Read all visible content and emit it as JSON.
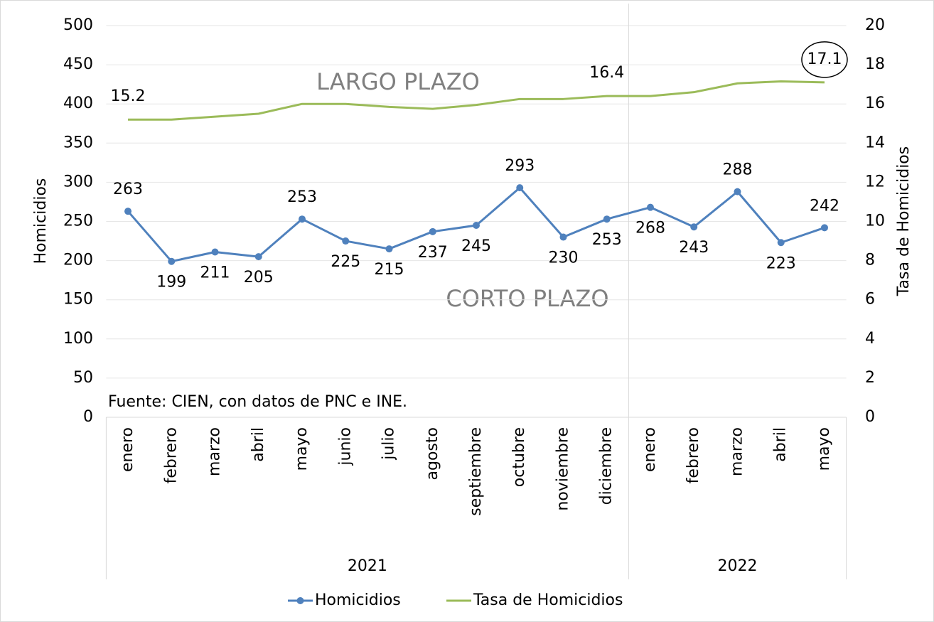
{
  "chart_data": {
    "type": "line",
    "y_label": "Homicidios",
    "y2_label": "Tasa de Homicidios",
    "groups": [
      {
        "label": "2021",
        "categories": [
          "enero",
          "febrero",
          "marzo",
          "abril",
          "mayo",
          "junio",
          "julio",
          "agosto",
          "septiembre",
          "octubre",
          "noviembre",
          "diciembre"
        ]
      },
      {
        "label": "2022",
        "categories": [
          "enero",
          "febrero",
          "marzo",
          "abril",
          "mayo"
        ]
      }
    ],
    "series": [
      {
        "name": "Homicidios",
        "color": "#4f81bd",
        "axis": "y",
        "markers": true,
        "values": [
          263,
          199,
          211,
          205,
          253,
          225,
          215,
          237,
          245,
          293,
          230,
          253,
          268,
          243,
          288,
          223,
          242
        ]
      },
      {
        "name": "Tasa de Homicidios",
        "color": "#9bbb59",
        "axis": "y2",
        "markers": false,
        "values": [
          15.2,
          15.2,
          15.35,
          15.5,
          16.0,
          16.0,
          15.85,
          15.75,
          15.95,
          16.25,
          16.25,
          16.4,
          16.4,
          16.6,
          17.05,
          17.15,
          17.1
        ],
        "value_labels": [
          "15.2",
          null,
          null,
          null,
          null,
          null,
          null,
          null,
          null,
          null,
          null,
          "16.4",
          null,
          null,
          null,
          null,
          "17.1"
        ]
      }
    ],
    "ylim": [
      0,
      500
    ],
    "yticks": [
      0,
      50,
      100,
      150,
      200,
      250,
      300,
      350,
      400,
      450,
      500
    ],
    "y2lim": [
      0,
      20
    ],
    "y2ticks": [
      0,
      2,
      4,
      6,
      8,
      10,
      12,
      14,
      16,
      18,
      20
    ],
    "grid": true,
    "legend": "bottom",
    "annotations": [
      "LARGO PLAZO",
      "CORTO PLAZO",
      "Fuente: CIEN, con datos de PNC e INE."
    ]
  }
}
